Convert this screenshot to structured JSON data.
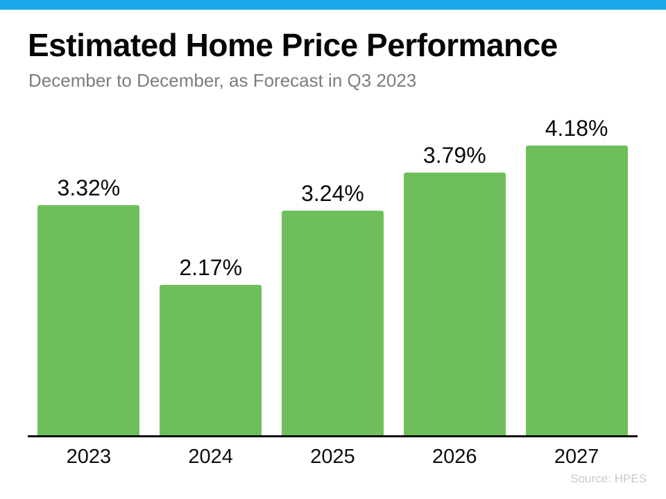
{
  "header": {
    "title": "Estimated Home Price Performance",
    "subtitle": "December to December, as Forecast in Q3 2023"
  },
  "footer": {
    "source": "Source: HPES"
  },
  "colors": {
    "accent_bar_blue": "#1BA8EA",
    "bar_green": "#6EBF5B",
    "title_black": "#060606",
    "subtitle_gray": "#7C7C7C",
    "axis_black": "#0A0A0A",
    "source_gray": "#C9C9C9"
  },
  "chart_data": {
    "type": "bar",
    "title": "Estimated Home Price Performance",
    "subtitle": "December to December, as Forecast in Q3 2023",
    "categories": [
      "2023",
      "2024",
      "2025",
      "2026",
      "2027"
    ],
    "values": [
      3.32,
      2.17,
      3.24,
      3.79,
      4.18
    ],
    "value_labels": [
      "3.32%",
      "2.17%",
      "3.24%",
      "3.79%",
      "4.18%"
    ],
    "unit": "%",
    "xlabel": "",
    "ylabel": "",
    "ylim": [
      0,
      4.68
    ],
    "grid": false,
    "legend": false,
    "y_axis_shown": false,
    "bar_color": "#6EBF5B",
    "source": "Source: HPES"
  }
}
